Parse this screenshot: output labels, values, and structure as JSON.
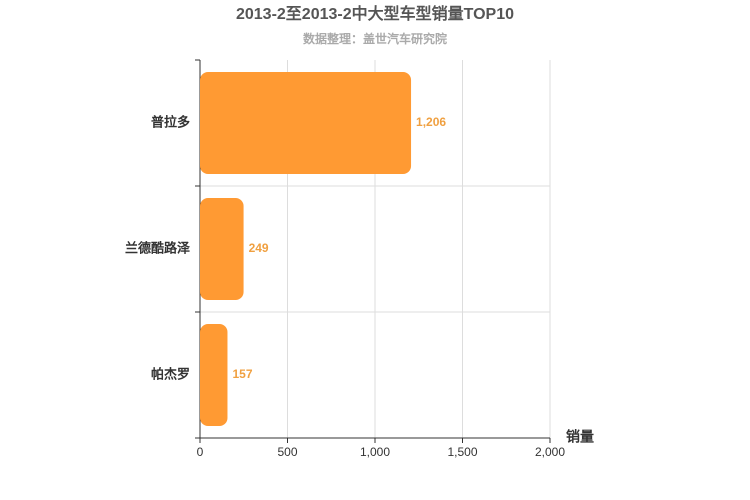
{
  "chart_data": {
    "type": "hbar",
    "title": "2013-2至2013-2中大型车型销量TOP10",
    "subtitle": "数据整理：盖世汽车研究院",
    "x_label": "销量",
    "categories": [
      "普拉多",
      "兰德酷路泽",
      "帕杰罗"
    ],
    "values": [
      1206,
      249,
      157
    ],
    "value_labels": [
      "1,206",
      "249",
      "157"
    ],
    "color": "#ff9a33",
    "xlim": [
      0,
      2000
    ],
    "xticks": [
      0,
      500,
      {
        "value": 1000,
        "label": "1,000"
      },
      {
        "value": 1500,
        "label": "1,500"
      },
      {
        "value": 2000,
        "label": "2,000"
      }
    ],
    "grid": true
  }
}
